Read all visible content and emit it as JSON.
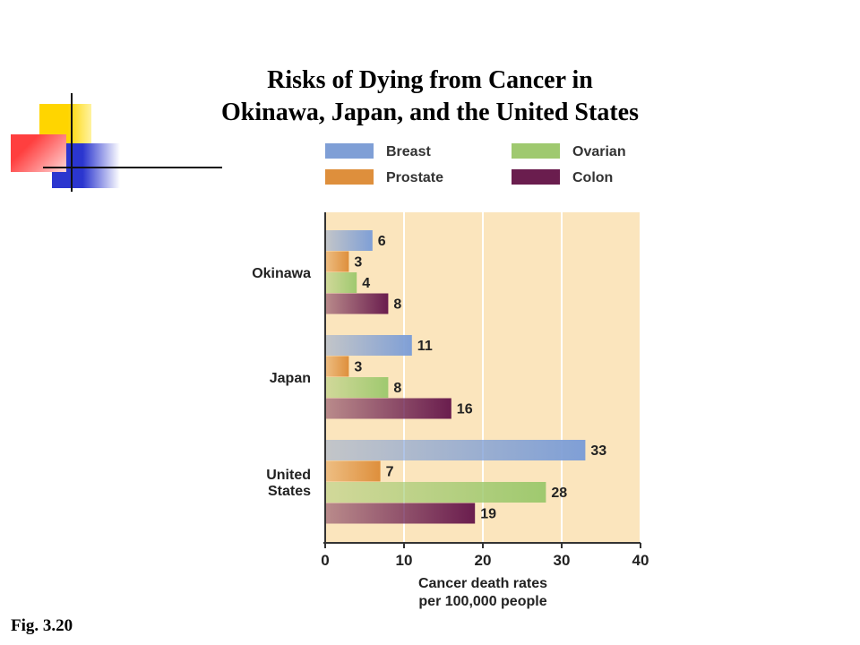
{
  "slide": {
    "title_line1": "Risks of Dying from Cancer in",
    "title_line2": "Okinawa, Japan, and the United States",
    "figure_label": "Fig. 3.20"
  },
  "colors": {
    "plot_background": "#fbe5bd",
    "deco_yellow": "#ffd500",
    "deco_blue": "#2b36cf",
    "deco_red": "#ff3f3f"
  },
  "chart_data": {
    "type": "bar",
    "orientation": "horizontal",
    "categories": [
      "Okinawa",
      "Japan",
      "United States"
    ],
    "series": [
      {
        "name": "Breast",
        "values": [
          6,
          11,
          33
        ],
        "color": "#7f9fd6"
      },
      {
        "name": "Prostate",
        "values": [
          3,
          3,
          7
        ],
        "color": "#de8f3c"
      },
      {
        "name": "Ovarian",
        "values": [
          4,
          8,
          28
        ],
        "color": "#9fc96f"
      },
      {
        "name": "Colon",
        "values": [
          8,
          16,
          19
        ],
        "color": "#6a1d4e"
      }
    ],
    "xlabel_line1": "Cancer death rates",
    "xlabel_line2": "per 100,000 people",
    "xlim": [
      0,
      40
    ],
    "xticks": [
      0,
      10,
      20,
      30,
      40
    ],
    "grid": true,
    "legend_position": "top"
  }
}
